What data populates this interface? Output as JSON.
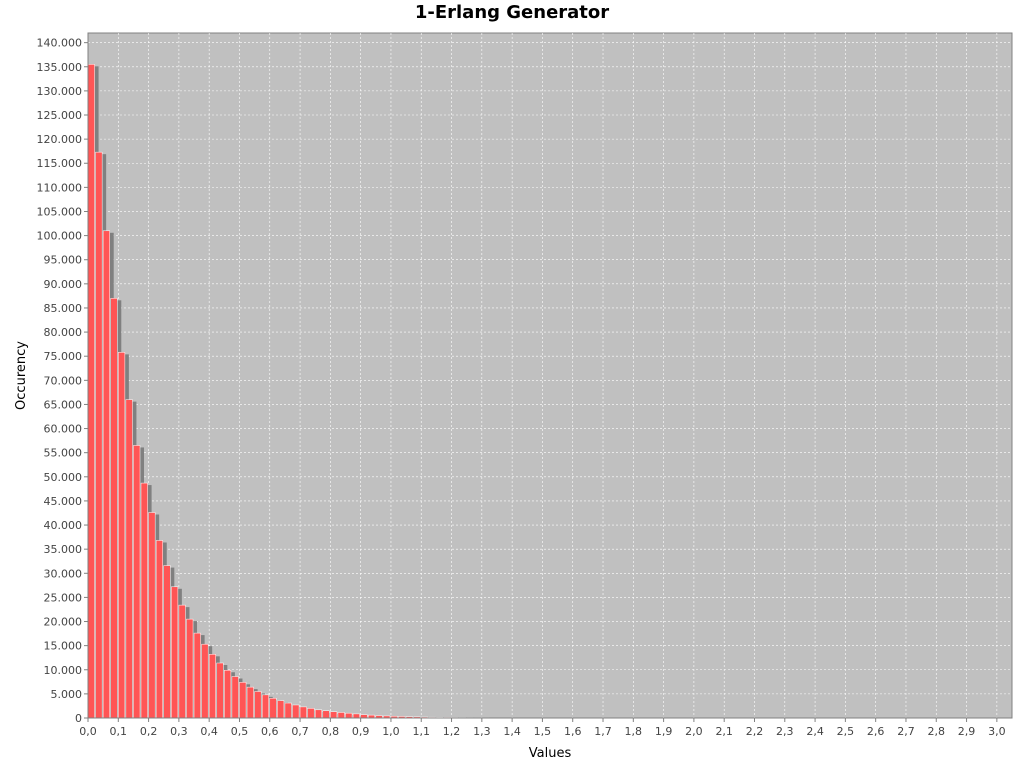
{
  "chart_data": {
    "type": "bar",
    "title": "1-Erlang Generator",
    "xlabel": "Values",
    "ylabel": "Occurency",
    "xlim": [
      0.0,
      3.05
    ],
    "ylim": [
      0,
      142000
    ],
    "bin_width": 0.025,
    "x_ticks": [
      "0,0",
      "0,1",
      "0,2",
      "0,3",
      "0,4",
      "0,5",
      "0,6",
      "0,7",
      "0,8",
      "0,9",
      "1,0",
      "1,1",
      "1,2",
      "1,3",
      "1,4",
      "1,5",
      "1,6",
      "1,7",
      "1,8",
      "1,9",
      "2,0",
      "2,1",
      "2,2",
      "2,3",
      "2,4",
      "2,5",
      "2,6",
      "2,7",
      "2,8",
      "2,9",
      "3,0"
    ],
    "y_ticks": [
      "0",
      "5.000",
      "10.000",
      "15.000",
      "20.000",
      "25.000",
      "30.000",
      "35.000",
      "40.000",
      "45.000",
      "50.000",
      "55.000",
      "60.000",
      "65.000",
      "70.000",
      "75.000",
      "80.000",
      "85.000",
      "90.000",
      "95.000",
      "100.000",
      "105.000",
      "110.000",
      "115.000",
      "120.000",
      "125.000",
      "130.000",
      "135.000",
      "140.000"
    ],
    "grid": true,
    "colors": {
      "bar": "#ff5555",
      "shadow": "#808080",
      "plot_bg": "#c0c0c0"
    },
    "x": [
      0.0,
      0.025,
      0.05,
      0.075,
      0.1,
      0.125,
      0.15,
      0.175,
      0.2,
      0.225,
      0.25,
      0.275,
      0.3,
      0.325,
      0.35,
      0.375,
      0.4,
      0.425,
      0.45,
      0.475,
      0.5,
      0.525,
      0.55,
      0.575,
      0.6,
      0.625,
      0.65,
      0.675,
      0.7,
      0.725,
      0.75,
      0.775,
      0.8,
      0.825,
      0.85,
      0.875,
      0.9,
      0.925,
      0.95,
      0.975,
      1.0,
      1.025,
      1.05,
      1.075,
      1.1,
      1.125,
      1.15,
      1.175,
      1.2,
      1.225,
      1.25,
      1.275,
      1.3,
      1.325,
      1.35,
      1.375,
      1.4
    ],
    "values": [
      135500,
      117300,
      101000,
      87000,
      75800,
      66000,
      56500,
      48700,
      42600,
      36800,
      31600,
      27200,
      23400,
      20500,
      17600,
      15300,
      13200,
      11400,
      9900,
      8600,
      7400,
      6400,
      5500,
      4800,
      4100,
      3600,
      3100,
      2700,
      2300,
      2000,
      1700,
      1500,
      1300,
      1150,
      1000,
      850,
      700,
      600,
      500,
      430,
      370,
      320,
      280,
      240,
      200,
      170,
      150,
      130,
      110,
      95,
      80,
      70,
      60,
      50,
      40,
      35,
      30
    ]
  }
}
